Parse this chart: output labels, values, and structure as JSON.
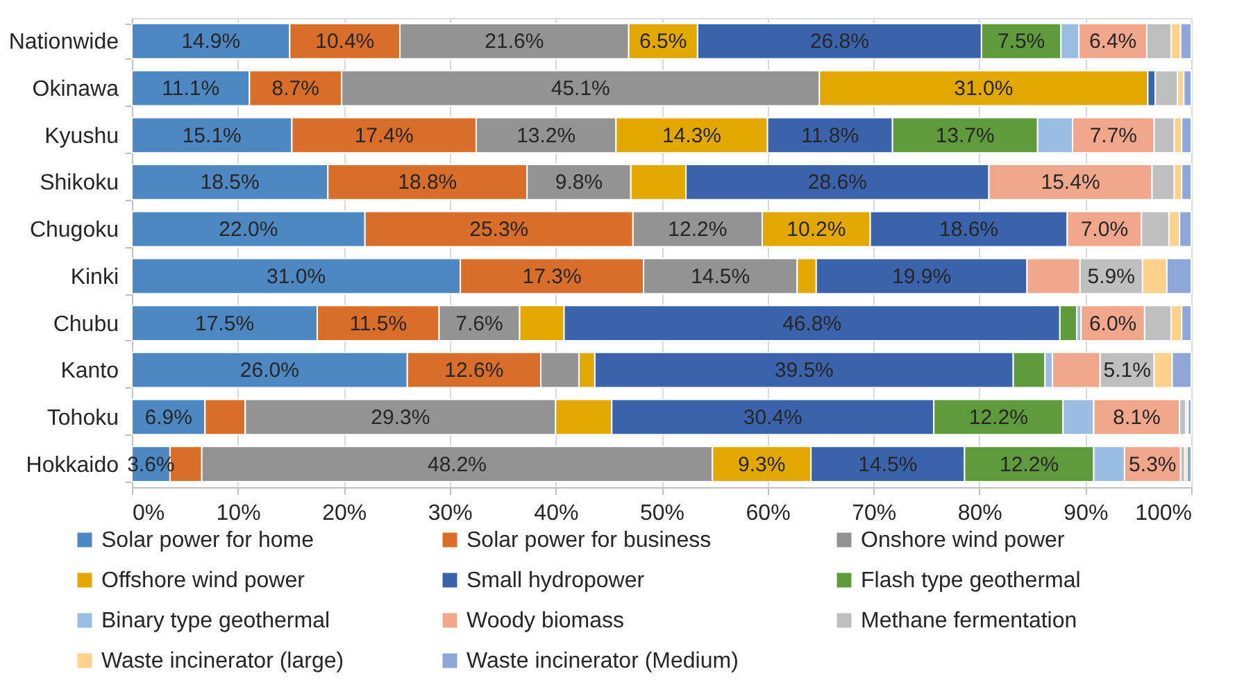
{
  "chart_data": {
    "type": "bar",
    "orientation": "horizontal",
    "stacked": true,
    "categories": [
      "Nationwide",
      "Okinawa",
      "Kyushu",
      "Shikoku",
      "Chugoku",
      "Kinki",
      "Chubu",
      "Kanto",
      "Tohoku",
      "Hokkaido"
    ],
    "series": [
      {
        "name": "Solar power for home",
        "color": "#4e88c2",
        "values": [
          14.9,
          11.1,
          15.1,
          18.5,
          22.0,
          31.0,
          17.5,
          26.0,
          6.9,
          3.6
        ],
        "value_labels": [
          "14.9%",
          "11.1%",
          "15.1%",
          "18.5%",
          "22.0%",
          "31.0%",
          "17.5%",
          "26.0%",
          "6.9%",
          "3.6%"
        ]
      },
      {
        "name": "Solar power for business",
        "color": "#d86e2a",
        "values": [
          10.4,
          8.7,
          17.4,
          18.8,
          25.3,
          17.3,
          11.5,
          12.6,
          3.8,
          3.0
        ],
        "value_labels": [
          "10.4%",
          "8.7%",
          "17.4%",
          "18.8%",
          "25.3%",
          "17.3%",
          "11.5%",
          "12.6%",
          null,
          null
        ]
      },
      {
        "name": "Onshore wind power",
        "color": "#939393",
        "values": [
          21.6,
          45.1,
          13.2,
          9.8,
          12.2,
          14.5,
          7.6,
          3.6,
          29.3,
          48.2
        ],
        "value_labels": [
          "21.6%",
          "45.1%",
          "13.2%",
          "9.8%",
          "12.2%",
          "14.5%",
          "7.6%",
          null,
          "29.3%",
          "48.2%"
        ]
      },
      {
        "name": "Offshore wind power",
        "color": "#e2a800",
        "values": [
          6.5,
          31.0,
          14.3,
          5.2,
          10.2,
          1.8,
          4.2,
          1.5,
          5.3,
          9.3
        ],
        "value_labels": [
          "6.5%",
          "31.0%",
          "14.3%",
          null,
          "10.2%",
          null,
          null,
          null,
          null,
          "9.3%"
        ]
      },
      {
        "name": "Small hydropower",
        "color": "#3b63ac",
        "values": [
          26.8,
          0.7,
          11.8,
          28.6,
          18.6,
          19.9,
          46.8,
          39.5,
          30.4,
          14.5
        ],
        "value_labels": [
          "26.8%",
          null,
          "11.8%",
          "28.6%",
          "18.6%",
          "19.9%",
          "46.8%",
          "39.5%",
          "30.4%",
          "14.5%"
        ]
      },
      {
        "name": "Flash type geothermal",
        "color": "#5f9b3c",
        "values": [
          7.5,
          null,
          13.7,
          null,
          null,
          null,
          1.6,
          3.0,
          12.2,
          12.2
        ],
        "value_labels": [
          "7.5%",
          null,
          "13.7%",
          null,
          null,
          null,
          null,
          null,
          "12.2%",
          "12.2%"
        ]
      },
      {
        "name": "Binary type geothermal",
        "color": "#9cbde3",
        "values": [
          1.7,
          null,
          3.3,
          null,
          null,
          null,
          0.4,
          0.7,
          2.9,
          2.9
        ],
        "value_labels": [
          null,
          null,
          null,
          null,
          null,
          null,
          null,
          null,
          null,
          null
        ]
      },
      {
        "name": "Woody biomass",
        "color": "#f1a78b",
        "values": [
          6.4,
          null,
          7.7,
          15.4,
          7.0,
          5.0,
          6.0,
          4.5,
          8.1,
          5.3
        ],
        "value_labels": [
          "6.4%",
          null,
          "7.7%",
          "15.4%",
          "7.0%",
          null,
          "6.0%",
          null,
          "8.1%",
          "5.3%"
        ]
      },
      {
        "name": "Methane fermentation",
        "color": "#bfbfbf",
        "values": [
          2.3,
          2.1,
          1.9,
          2.1,
          2.6,
          5.9,
          2.5,
          5.1,
          0.6,
          0.4
        ],
        "value_labels": [
          null,
          null,
          null,
          null,
          null,
          "5.9%",
          null,
          "5.1%",
          null,
          null
        ]
      },
      {
        "name": "Waste incinerator (large)",
        "color": "#ffd18a",
        "values": [
          0.9,
          0.6,
          0.7,
          0.7,
          1.0,
          2.3,
          1.0,
          1.7,
          0.2,
          0.2
        ],
        "value_labels": [
          null,
          null,
          null,
          null,
          null,
          null,
          null,
          null,
          null,
          null
        ]
      },
      {
        "name": "Waste incinerator (Medium)",
        "color": "#8fa6d9",
        "values": [
          1.0,
          0.7,
          0.9,
          0.9,
          1.1,
          2.3,
          0.9,
          1.8,
          0.3,
          0.4
        ],
        "value_labels": [
          null,
          null,
          null,
          null,
          null,
          null,
          null,
          null,
          null,
          null
        ]
      }
    ],
    "xlim": [
      0,
      100
    ],
    "xticks": [
      {
        "value": 0,
        "label": "0%"
      },
      {
        "value": 10,
        "label": "10%"
      },
      {
        "value": 20,
        "label": "20%"
      },
      {
        "value": 30,
        "label": "30%"
      },
      {
        "value": 40,
        "label": "40%"
      },
      {
        "value": 50,
        "label": "50%"
      },
      {
        "value": 60,
        "label": "60%"
      },
      {
        "value": 70,
        "label": "70%"
      },
      {
        "value": 80,
        "label": "80%"
      },
      {
        "value": 90,
        "label": "90%"
      },
      {
        "value": 100,
        "label": "100%"
      }
    ],
    "grid": "x",
    "legend": "bottom"
  }
}
